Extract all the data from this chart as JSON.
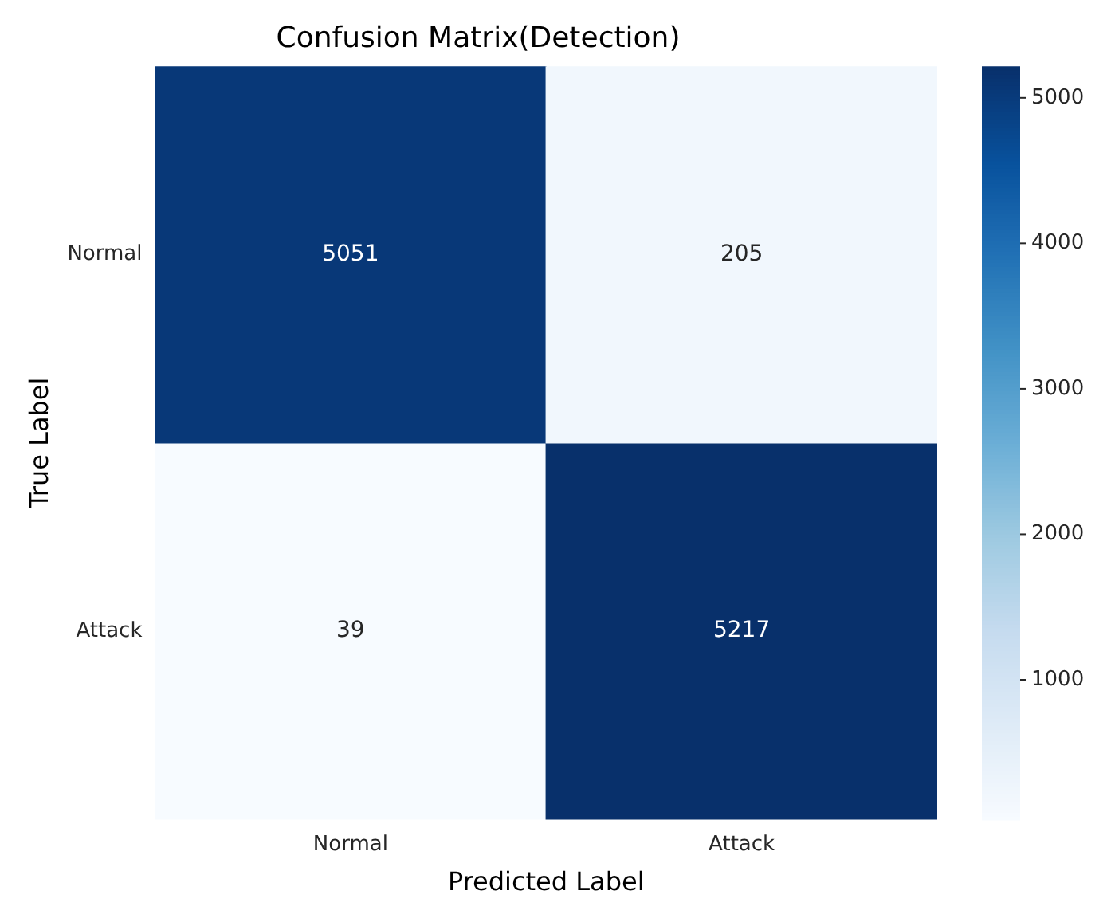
{
  "chart_data": {
    "type": "heatmap",
    "title": "Confusion Matrix(Detection)",
    "xlabel": "Predicted Label",
    "ylabel": "True Label",
    "categories": [
      "Normal",
      "Attack"
    ],
    "y_categories": [
      "Normal",
      "Attack"
    ],
    "cells": [
      [
        5051,
        205
      ],
      [
        39,
        5217
      ]
    ],
    "clim": [
      39,
      5217
    ],
    "cticks": [
      1000,
      2000,
      3000,
      4000,
      5000
    ],
    "data_labels": true
  }
}
